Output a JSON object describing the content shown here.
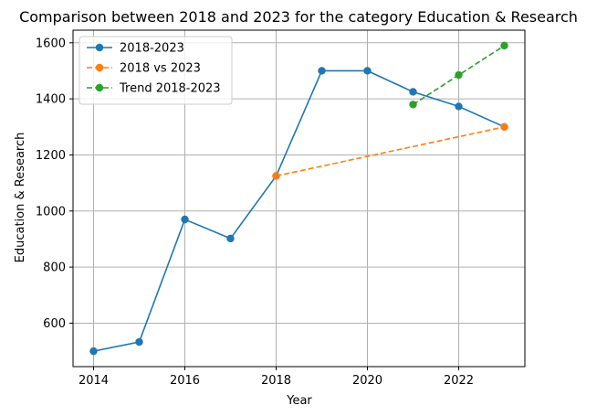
{
  "chart_data": {
    "type": "line",
    "title": "Comparison between 2018 and 2023 for the category Education & Research",
    "xlabel": "Year",
    "ylabel": "Education & Research",
    "xlim": [
      2013.55,
      2023.45
    ],
    "ylim": [
      445,
      1645
    ],
    "x_ticks": [
      2014,
      2016,
      2018,
      2020,
      2022
    ],
    "y_ticks": [
      600,
      800,
      1000,
      1200,
      1400,
      1600
    ],
    "grid": true,
    "legend_position": "upper-left",
    "series": [
      {
        "name": "2018-2023",
        "color": "#1f77b4",
        "linestyle": "solid",
        "marker": "circle",
        "x": [
          2014,
          2015,
          2016,
          2017,
          2018,
          2019,
          2020,
          2021,
          2022,
          2023
        ],
        "y": [
          500,
          533,
          970,
          902,
          1125,
          1500,
          1500,
          1425,
          1373,
          1300
        ]
      },
      {
        "name": "2018 vs 2023",
        "color": "#ff7f0e",
        "linestyle": "dashed",
        "marker": "circle",
        "x": [
          2018,
          2023
        ],
        "y": [
          1125,
          1300
        ]
      },
      {
        "name": "Trend 2018-2023",
        "color": "#2ca02c",
        "linestyle": "dashed",
        "marker": "circle",
        "x": [
          2021,
          2022,
          2023
        ],
        "y": [
          1380,
          1485,
          1590
        ]
      }
    ]
  }
}
